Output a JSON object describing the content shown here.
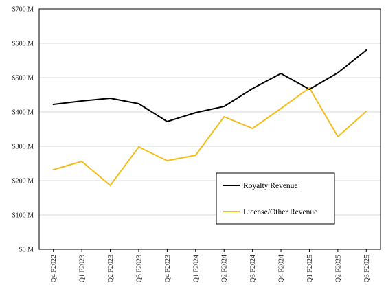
{
  "chart_data": {
    "type": "line",
    "categories": [
      "Q4 F2022",
      "Q1 F2023",
      "Q2 F2023",
      "Q3 F2023",
      "Q4 F2023",
      "Q1 F2024",
      "Q2 F2024",
      "Q3 F2024",
      "Q4 F2024",
      "Q1 F2025",
      "Q2 F2025",
      "Q3 F2025"
    ],
    "series": [
      {
        "name": "Royalty Revenue",
        "color": "#000000",
        "values": [
          422,
          432,
          440,
          424,
          372,
          398,
          416,
          468,
          512,
          466,
          514,
          580
        ]
      },
      {
        "name": "License/Other Revenue",
        "color": "#f2bd1a",
        "values": [
          232,
          256,
          186,
          298,
          258,
          274,
          386,
          352,
          410,
          470,
          328,
          402
        ]
      }
    ],
    "y_ticks": [
      0,
      100,
      200,
      300,
      400,
      500,
      600,
      700
    ],
    "y_tick_labels": [
      "$0 M",
      "$100 M",
      "$200 M",
      "$300 M",
      "$400 M",
      "$500 M",
      "$600 M",
      "$700 M"
    ],
    "ylim": [
      0,
      700
    ],
    "grid": true,
    "legend_position": "lower-right",
    "title": "",
    "xlabel": "",
    "ylabel": ""
  }
}
